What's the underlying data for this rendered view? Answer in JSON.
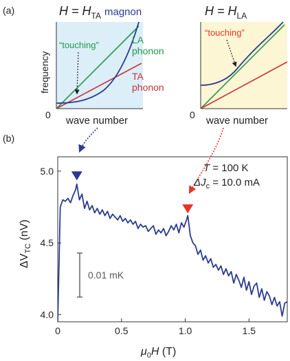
{
  "panel_a": {
    "label": "(a)",
    "left": {
      "title_main": "H = H",
      "title_sub": "TA",
      "magnon_label": "magnon",
      "touching_label": "“touching”",
      "la_label_1": "LA",
      "la_label_2": "phonon",
      "ta_label_1": "TA",
      "ta_label_2": "phonon",
      "ylabel": "frequency",
      "origin": "0",
      "xlabel": "wave number",
      "background": "#dceef8"
    },
    "right": {
      "title_main": "H = H",
      "title_sub": "LA",
      "touching_label": "“touching”",
      "origin": "0",
      "xlabel": "wave number",
      "background": "#fdf6d4"
    },
    "colors": {
      "magnon": "#2b3a8f",
      "la": "#1d9b4a",
      "ta": "#c8323c",
      "touching_red": "#e8332a"
    }
  },
  "panel_b": {
    "label": "(b)",
    "annot_T": "T = 100 K",
    "annot_J": "ΔJ",
    "annot_J_sub": "c",
    "annot_J_val": " = 10.0 mA",
    "scalebar_label": "0.01 mK",
    "marker_colors": [
      "#2b3a8f",
      "#e8332a"
    ]
  },
  "chart_data": {
    "type": "line",
    "title": "",
    "xlabel": "μ0H (T)",
    "ylabel": "ΔVTC (nV)",
    "xlim": [
      0,
      1.8
    ],
    "ylim": [
      3.95,
      5.1
    ],
    "x_ticks": [
      "0",
      "0.5",
      "1.0",
      "1.5"
    ],
    "x_tick_values": [
      0,
      0.5,
      1.0,
      1.5
    ],
    "y_ticks": [
      "4.0",
      "4.5",
      "5.0"
    ],
    "y_tick_values": [
      4.0,
      4.5,
      5.0
    ],
    "line_color": "#2b3a8f",
    "markers": [
      {
        "x": 0.15,
        "y": 4.96,
        "color": "#2b3a8f"
      },
      {
        "x": 1.02,
        "y": 4.73,
        "color": "#e8332a"
      }
    ],
    "series": [
      {
        "x": [
          0.0,
          0.02,
          0.04,
          0.06,
          0.08,
          0.1,
          0.12,
          0.14,
          0.15,
          0.17,
          0.19,
          0.21,
          0.23,
          0.25,
          0.27,
          0.29,
          0.31,
          0.33,
          0.35,
          0.37,
          0.39,
          0.41,
          0.43,
          0.45,
          0.47,
          0.49,
          0.51,
          0.53,
          0.55,
          0.57,
          0.59,
          0.61,
          0.63,
          0.65,
          0.67,
          0.69,
          0.71,
          0.73,
          0.75,
          0.77,
          0.79,
          0.81,
          0.83,
          0.85,
          0.87,
          0.89,
          0.91,
          0.93,
          0.95,
          0.97,
          0.99,
          1.01,
          1.02,
          1.04,
          1.06,
          1.08,
          1.1,
          1.12,
          1.14,
          1.16,
          1.18,
          1.2,
          1.22,
          1.24,
          1.26,
          1.28,
          1.3,
          1.32,
          1.34,
          1.36,
          1.38,
          1.4,
          1.42,
          1.44,
          1.46,
          1.48,
          1.5,
          1.52,
          1.54,
          1.56,
          1.58,
          1.6,
          1.62,
          1.64,
          1.66,
          1.68,
          1.7,
          1.72,
          1.74,
          1.76,
          1.78,
          1.8
        ],
        "values": [
          3.95,
          4.75,
          4.8,
          4.79,
          4.81,
          4.78,
          4.83,
          4.87,
          4.91,
          4.8,
          4.84,
          4.74,
          4.79,
          4.73,
          4.76,
          4.71,
          4.74,
          4.7,
          4.73,
          4.69,
          4.72,
          4.67,
          4.7,
          4.68,
          4.66,
          4.69,
          4.65,
          4.67,
          4.64,
          4.66,
          4.63,
          4.65,
          4.6,
          4.63,
          4.61,
          4.62,
          4.58,
          4.6,
          4.62,
          4.56,
          4.59,
          4.57,
          4.6,
          4.55,
          4.58,
          4.62,
          4.59,
          4.63,
          4.57,
          4.64,
          4.61,
          4.66,
          4.69,
          4.55,
          4.5,
          4.48,
          4.42,
          4.45,
          4.38,
          4.41,
          4.36,
          4.39,
          4.33,
          4.35,
          4.31,
          4.34,
          4.28,
          4.32,
          4.27,
          4.3,
          4.22,
          4.28,
          4.24,
          4.19,
          4.26,
          4.17,
          4.23,
          4.14,
          4.2,
          4.22,
          4.12,
          4.18,
          4.1,
          4.16,
          4.13,
          4.07,
          4.12,
          4.06,
          4.09,
          3.99,
          4.08,
          4.09
        ]
      }
    ]
  }
}
